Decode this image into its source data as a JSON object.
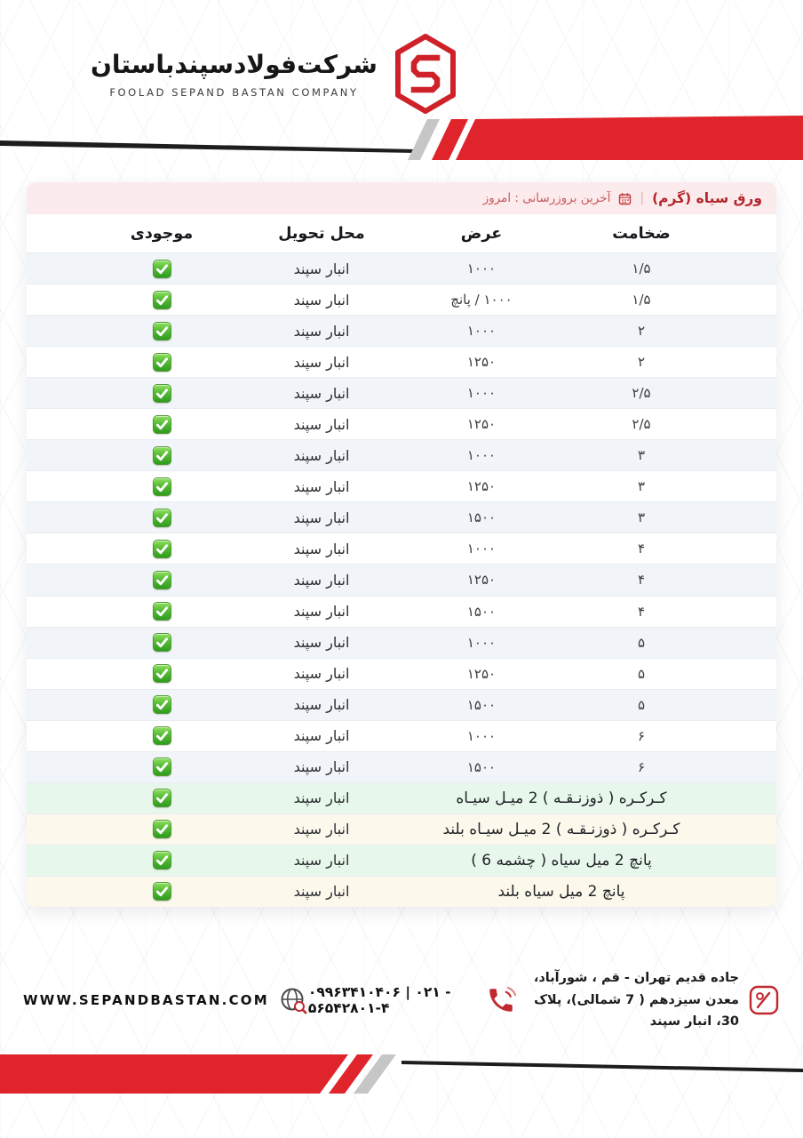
{
  "brand": {
    "company_name_fa": "شرکت‌فولادسپندباستان",
    "company_name_en": "FOOLAD SEPAND BASTAN COMPANY"
  },
  "price_table": {
    "title": "ورق سیاه (گرم)",
    "separator": "|",
    "last_update": "آخرین بروزرسانی : امروز",
    "columns": {
      "thickness": "ضخامت",
      "width": "عرض",
      "delivery": "محل تحویل",
      "stock": "موجودی"
    },
    "rows": [
      {
        "thickness": "۱/۵",
        "width": "۱۰۰۰",
        "delivery": "انبار سپند",
        "in_stock": true
      },
      {
        "thickness": "۱/۵",
        "width": "۱۰۰۰ / پانچ",
        "delivery": "انبار سپند",
        "in_stock": true
      },
      {
        "thickness": "۲",
        "width": "۱۰۰۰",
        "delivery": "انبار سپند",
        "in_stock": true
      },
      {
        "thickness": "۲",
        "width": "۱۲۵۰",
        "delivery": "انبار سپند",
        "in_stock": true
      },
      {
        "thickness": "۲/۵",
        "width": "۱۰۰۰",
        "delivery": "انبار سپند",
        "in_stock": true
      },
      {
        "thickness": "۲/۵",
        "width": "۱۲۵۰",
        "delivery": "انبار سپند",
        "in_stock": true
      },
      {
        "thickness": "۳",
        "width": "۱۰۰۰",
        "delivery": "انبار سپند",
        "in_stock": true
      },
      {
        "thickness": "۳",
        "width": "۱۲۵۰",
        "delivery": "انبار سپند",
        "in_stock": true
      },
      {
        "thickness": "۳",
        "width": "۱۵۰۰",
        "delivery": "انبار سپند",
        "in_stock": true
      },
      {
        "thickness": "۴",
        "width": "۱۰۰۰",
        "delivery": "انبار سپند",
        "in_stock": true
      },
      {
        "thickness": "۴",
        "width": "۱۲۵۰",
        "delivery": "انبار سپند",
        "in_stock": true
      },
      {
        "thickness": "۴",
        "width": "۱۵۰۰",
        "delivery": "انبار سپند",
        "in_stock": true
      },
      {
        "thickness": "۵",
        "width": "۱۰۰۰",
        "delivery": "انبار سپند",
        "in_stock": true
      },
      {
        "thickness": "۵",
        "width": "۱۲۵۰",
        "delivery": "انبار سپند",
        "in_stock": true
      },
      {
        "thickness": "۵",
        "width": "۱۵۰۰",
        "delivery": "انبار سپند",
        "in_stock": true
      },
      {
        "thickness": "۶",
        "width": "۱۰۰۰",
        "delivery": "انبار سپند",
        "in_stock": true
      },
      {
        "thickness": "۶",
        "width": "۱۵۰۰",
        "delivery": "انبار سپند",
        "in_stock": true
      },
      {
        "product": "کـرکـره ( ذوزنـقـه ) 2 میـل سیـاه",
        "delivery": "انبار سپند",
        "in_stock": true,
        "tone": "green"
      },
      {
        "product": "کـرکـره ( ذوزنـقـه ) 2 میـل سیـاه بلند",
        "delivery": "انبار سپند",
        "in_stock": true,
        "tone": "cream"
      },
      {
        "product": "پانچ 2 میل سیاه ( چشمه 6 )",
        "delivery": "انبار سپند",
        "in_stock": true,
        "tone": "green"
      },
      {
        "product": "پانچ 2 میل سیاه بلند",
        "delivery": "انبار سپند",
        "in_stock": true,
        "tone": "cream"
      }
    ]
  },
  "footer": {
    "website": "WWW.SEPANDBASTAN.COM",
    "phone_numbers": "۰۹۹۶۳۴۱۰۴۰۶ | ۰۲۱ - ۵۶۵۴۲۸۰۱-۴",
    "address_line1": "جاده قدیم تهران - قم ، شورآباد،",
    "address_line2": "معدن سیزدهم ( 7 شمالی)، پلاک 30، انبار سپند"
  },
  "colors": {
    "brand_red": "#e0242c",
    "logo_red": "#ce2129",
    "pink_bar": "#fcebec",
    "zebra_row": "#f1f5f9",
    "green_row": "#e8f7ec",
    "cream_row": "#fdf8ec",
    "check_green": "#3fa527"
  }
}
